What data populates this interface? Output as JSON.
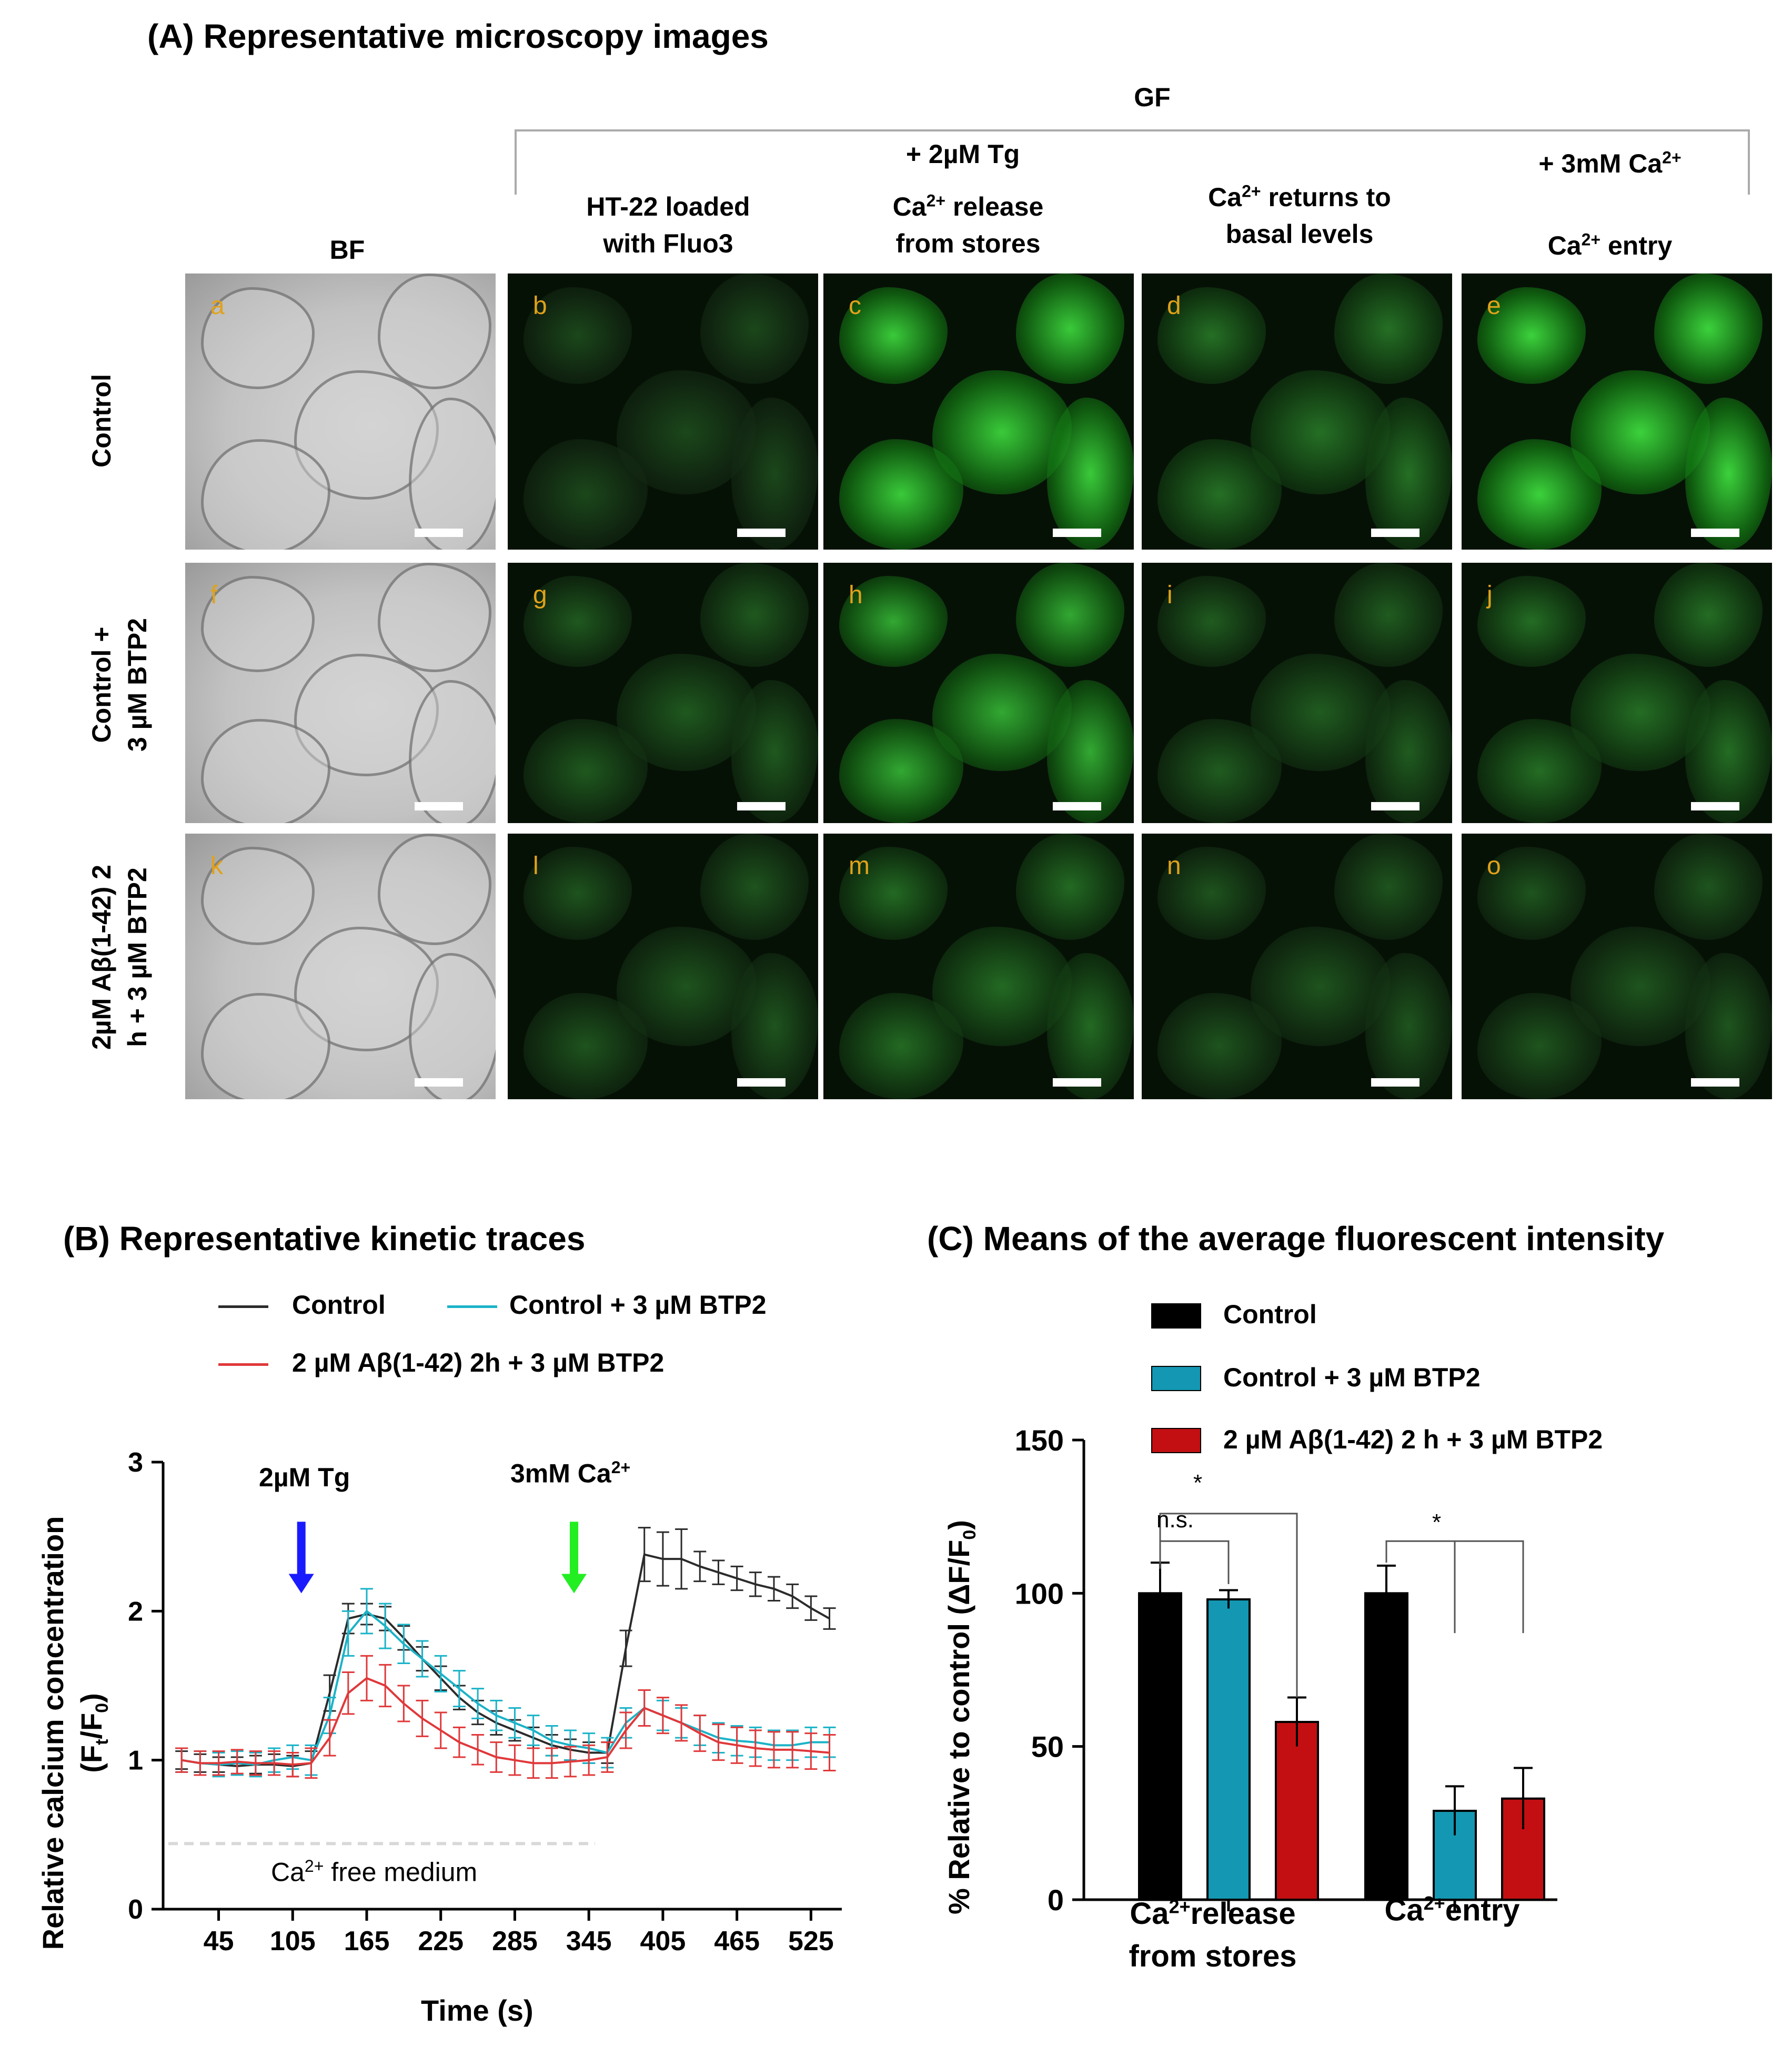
{
  "section_a": {
    "title": "(A) Representative microscopy images",
    "group_label": "GF",
    "tg_label": "+ 2µM Tg",
    "ca_label": "+ 3mM Ca",
    "ca_sup": "2+",
    "columns": {
      "bf": "BF",
      "loaded_line1": "HT-22 loaded",
      "loaded_line2": "with Fluo3",
      "release_line1_base": "Ca",
      "release_line1_sup": "2+",
      "release_line1_rest": " release",
      "release_line2": "from stores",
      "basal_line1_base": "Ca",
      "basal_line1_sup": "2+",
      "basal_line1_rest": " returns to",
      "basal_line2": "basal levels",
      "entry_base": "Ca",
      "entry_sup": "2+",
      "entry_rest": " entry"
    },
    "rows": [
      {
        "label_line1": "Control",
        "label_line2": ""
      },
      {
        "label_line1": "Control +",
        "label_line2": "3 µM BTP2"
      },
      {
        "label_line1": "2µM Aβ(1-42) 2",
        "label_line2": "h + 3 µM BTP2"
      }
    ],
    "panel_letters": [
      "a",
      "b",
      "c",
      "d",
      "e",
      "f",
      "g",
      "h",
      "i",
      "j",
      "k",
      "l",
      "m",
      "n",
      "o"
    ],
    "colors": {
      "letter": "#e0a21a",
      "fluor": "#3ec13e"
    }
  },
  "section_b": {
    "title": "(B) Representative kinetic traces",
    "legend": [
      {
        "name": "Control",
        "color": "#2b2b2b"
      },
      {
        "name": "Control + 3 µM BTP2",
        "color": "#1bb3c8"
      },
      {
        "name": "2 µM Aβ(1-42) 2h + 3 µM BTP2",
        "color": "#e0383a"
      }
    ],
    "ylabel_line1": "Relative calcium concentration",
    "ylabel_line2": "(F",
    "ylabel_sub_t": "t",
    "ylabel_mid": "/F",
    "ylabel_sub_0": "0",
    "ylabel_close": ")",
    "xlabel": "Time (s)",
    "arrow_tg": "2µM Tg",
    "arrow_ca_base": "3mM Ca",
    "arrow_ca_sup": "2+",
    "free_medium_base": "Ca",
    "free_medium_sup": "2+",
    "free_medium_rest": " free medium",
    "arrow_colors": {
      "tg": "#1a1aff",
      "ca": "#22ee22"
    }
  },
  "section_c": {
    "title": "(C) Means of the average fluorescent intensity",
    "legend": [
      {
        "name": "Control",
        "color": "#000000"
      },
      {
        "name": "Control + 3 µM BTP2",
        "color": "#1497b2"
      },
      {
        "name": "2 µM Aβ(1-42) 2 h + 3 µM BTP2",
        "color": "#c30f12"
      }
    ],
    "ylabel": "% Relative to control (ΔF/F",
    "ylabel_sub": "0",
    "ylabel_close": ")",
    "group1_line1_base": "Ca",
    "group1_line1_sup": "2+",
    "group1_line1_rest": "release",
    "group1_line2": "from stores",
    "group2_base": "Ca",
    "group2_sup": "2+",
    "group2_rest": "entry",
    "sig_star": "*",
    "sig_ns": "n.s."
  },
  "chart_data": [
    {
      "type": "line",
      "xlabel": "Time (s)",
      "ylabel": "Relative calcium concentration (Ft/F0)",
      "xticks": [
        45,
        105,
        165,
        225,
        285,
        345,
        405,
        465,
        525
      ],
      "yticks": [
        0,
        1,
        2,
        3
      ],
      "xlim": [
        0,
        550
      ],
      "ylim": [
        0,
        3
      ],
      "x": [
        15,
        30,
        45,
        60,
        75,
        90,
        105,
        120,
        135,
        150,
        165,
        180,
        195,
        210,
        225,
        240,
        255,
        270,
        285,
        300,
        315,
        330,
        345,
        360,
        375,
        390,
        405,
        420,
        435,
        450,
        465,
        480,
        495,
        510,
        525,
        540
      ],
      "series": [
        {
          "name": "Control",
          "values": [
            1.0,
            0.98,
            0.97,
            0.96,
            0.97,
            0.97,
            0.96,
            0.98,
            1.45,
            1.95,
            1.98,
            1.95,
            1.82,
            1.68,
            1.55,
            1.42,
            1.32,
            1.25,
            1.2,
            1.15,
            1.1,
            1.07,
            1.05,
            1.05,
            1.75,
            2.38,
            2.35,
            2.35,
            2.3,
            2.26,
            2.22,
            2.18,
            2.15,
            2.1,
            2.02,
            1.95
          ],
          "error": [
            0.06,
            0.06,
            0.05,
            0.06,
            0.06,
            0.07,
            0.07,
            0.08,
            0.12,
            0.1,
            0.07,
            0.08,
            0.08,
            0.08,
            0.08,
            0.08,
            0.08,
            0.08,
            0.07,
            0.07,
            0.07,
            0.07,
            0.07,
            0.07,
            0.12,
            0.18,
            0.18,
            0.2,
            0.1,
            0.08,
            0.08,
            0.08,
            0.08,
            0.08,
            0.08,
            0.07
          ]
        },
        {
          "name": "Control + 3 µM BTP2",
          "values": [
            1.0,
            0.98,
            0.97,
            0.98,
            0.97,
            1.0,
            1.02,
            1.0,
            1.3,
            1.85,
            2.0,
            1.9,
            1.78,
            1.68,
            1.58,
            1.48,
            1.38,
            1.3,
            1.25,
            1.2,
            1.13,
            1.1,
            1.08,
            1.05,
            1.25,
            1.35,
            1.3,
            1.25,
            1.2,
            1.15,
            1.13,
            1.12,
            1.1,
            1.1,
            1.12,
            1.12
          ],
          "error": [
            0.08,
            0.08,
            0.08,
            0.08,
            0.08,
            0.08,
            0.08,
            0.1,
            0.12,
            0.15,
            0.15,
            0.15,
            0.13,
            0.12,
            0.12,
            0.12,
            0.1,
            0.1,
            0.1,
            0.1,
            0.1,
            0.1,
            0.1,
            0.1,
            0.1,
            0.12,
            0.1,
            0.1,
            0.1,
            0.1,
            0.1,
            0.1,
            0.1,
            0.1,
            0.1,
            0.1
          ]
        },
        {
          "name": "2 µM Aβ(1-42) 2h + 3 µM BTP2",
          "values": [
            1.0,
            0.98,
            0.98,
            0.99,
            0.98,
            0.98,
            0.97,
            0.98,
            1.15,
            1.45,
            1.55,
            1.5,
            1.38,
            1.28,
            1.2,
            1.12,
            1.07,
            1.02,
            1.0,
            0.98,
            0.98,
            0.99,
            1.0,
            1.02,
            1.2,
            1.35,
            1.3,
            1.25,
            1.18,
            1.12,
            1.1,
            1.08,
            1.07,
            1.07,
            1.06,
            1.05
          ],
          "error": [
            0.08,
            0.08,
            0.08,
            0.08,
            0.08,
            0.08,
            0.08,
            0.1,
            0.12,
            0.14,
            0.15,
            0.14,
            0.12,
            0.12,
            0.12,
            0.1,
            0.1,
            0.1,
            0.1,
            0.1,
            0.1,
            0.1,
            0.1,
            0.1,
            0.12,
            0.12,
            0.12,
            0.12,
            0.12,
            0.12,
            0.12,
            0.12,
            0.12,
            0.12,
            0.12,
            0.12
          ]
        }
      ],
      "annotations": [
        "2µM Tg",
        "3mM Ca2+",
        "Ca2+ free medium"
      ]
    },
    {
      "type": "bar",
      "ylabel": "% Relative to control (ΔF/F0)",
      "yticks": [
        0,
        50,
        100,
        150
      ],
      "ylim": [
        0,
        150
      ],
      "categories": [
        "Ca2+release from stores",
        "Ca2+entry"
      ],
      "series": [
        {
          "name": "Control",
          "values": [
            100,
            100
          ],
          "error": [
            10,
            9
          ]
        },
        {
          "name": "Control + 3 µM BTP2",
          "values": [
            98,
            29
          ],
          "error": [
            3,
            8
          ]
        },
        {
          "name": "2 µM Aβ(1-42) 2 h + 3 µM BTP2",
          "values": [
            58,
            33
          ],
          "error": [
            8,
            10
          ]
        }
      ],
      "annotations": [
        "*",
        "n.s.",
        "*"
      ]
    }
  ]
}
